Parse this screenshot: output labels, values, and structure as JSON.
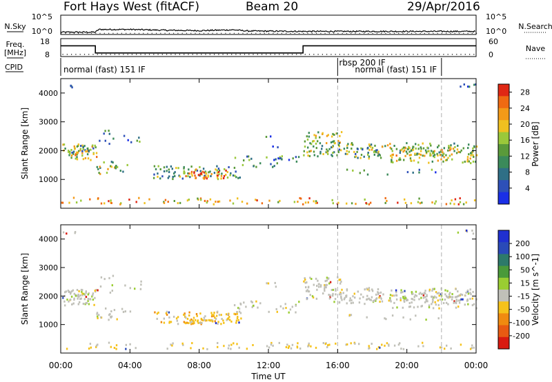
{
  "header": {
    "station": "Fort Hays West (fitACF)",
    "beam": "Beam 20",
    "date": "29/Apr/2016"
  },
  "top_panel_labels": {
    "nsky": "N.Sky",
    "nsky_tick_hi": "10^5",
    "nsky_tick_lo": "10^0",
    "nsearch": "N.Search",
    "nsearch_tick_hi": "10^5",
    "nsearch_tick_lo": "10^0",
    "freq": "Freq.",
    "freq_unit": "[MHz]",
    "freq_tick_hi": "18",
    "freq_tick_lo": "8",
    "nave": "Nave",
    "nave_tick_hi": "60",
    "nave_tick_lo": "0",
    "cpid": "CPID"
  },
  "cpid_segments": [
    {
      "label": "normal (fast) 151 IF",
      "start": 0,
      "end": 16
    },
    {
      "label": "rbsp 200 IF",
      "start": 16,
      "end": 22
    },
    {
      "label": "normal (fast) 151 IF",
      "start": 17,
      "end": 22
    }
  ],
  "colors": {
    "power_scale": [
      "#1a2fe6",
      "#2e50b8",
      "#2f6f86",
      "#3b8a5a",
      "#5a9a3a",
      "#9ac83a",
      "#f0c020",
      "#f39a18",
      "#ef6a12",
      "#e02814"
    ],
    "velocity_scale": [
      "#2030d0",
      "#2a4ab8",
      "#2d7a6a",
      "#4a9a3a",
      "#9acd32",
      "#c0c0b8",
      "#f5c21a",
      "#f08a10",
      "#e85a12",
      "#d81a10"
    ],
    "marker_line": "#b0b0b0"
  },
  "chart_data": [
    {
      "type": "line",
      "title": "N.Sky / N.Search",
      "x_range_hours": [
        0,
        24
      ],
      "nsky_level_log": [
        [
          0,
          0.6
        ],
        [
          2,
          0.6
        ],
        [
          2.2,
          1.3
        ],
        [
          4,
          1.3
        ],
        [
          6,
          1.1
        ],
        [
          8,
          1.0
        ],
        [
          10,
          1.2
        ],
        [
          10.8,
          0.9
        ],
        [
          14,
          0.8
        ],
        [
          18,
          0.8
        ],
        [
          24,
          0.8
        ]
      ],
      "ylim": [
        0,
        5
      ]
    },
    {
      "type": "line",
      "title": "Freq. / Nave",
      "x_range_hours": [
        0,
        24
      ],
      "freq_mhz": [
        [
          0,
          14
        ],
        [
          2,
          14
        ],
        [
          2,
          10
        ],
        [
          14,
          10
        ],
        [
          14,
          14
        ],
        [
          24,
          14
        ]
      ],
      "nave": [
        [
          0,
          18
        ],
        [
          24,
          18
        ]
      ],
      "ylim": [
        8,
        18
      ]
    },
    {
      "type": "heatmap",
      "title": "Power",
      "xlabel": "Time UT",
      "ylabel": "Slant Range [km]",
      "x_ticks": [
        "00:00",
        "04:00",
        "08:00",
        "12:00",
        "16:00",
        "20:00",
        "00:00"
      ],
      "y_ticks": [
        "1000",
        "2000",
        "3000",
        "4000"
      ],
      "xlim": [
        0,
        24
      ],
      "ylim": [
        0,
        4500
      ],
      "colorbar_label": "Power [dB]",
      "colorbar_ticks": [
        "4",
        "8",
        "12",
        "16",
        "20",
        "24",
        "28"
      ],
      "colorbar_range": [
        0,
        30
      ]
    },
    {
      "type": "heatmap",
      "title": "Velocity",
      "xlabel": "Time UT",
      "ylabel": "Slant Range [km]",
      "x_ticks": [
        "00:00",
        "04:00",
        "08:00",
        "12:00",
        "16:00",
        "20:00",
        "00:00"
      ],
      "y_ticks": [
        "1000",
        "2000",
        "3000",
        "4000"
      ],
      "xlim": [
        0,
        24
      ],
      "ylim": [
        0,
        4500
      ],
      "colorbar_label": "Velocity [m s^-1]",
      "colorbar_ticks": [
        "200",
        "100",
        "50",
        "15",
        "-15",
        "-50",
        "-100",
        "-200"
      ],
      "colorbar_range": [
        -250,
        250
      ]
    }
  ]
}
